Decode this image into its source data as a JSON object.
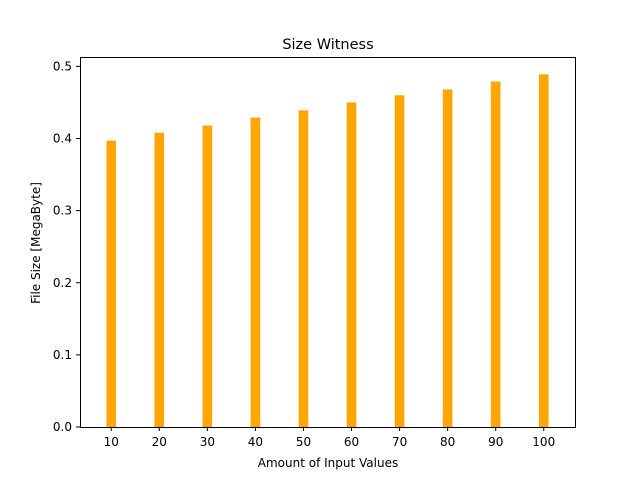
{
  "chart_data": {
    "type": "bar",
    "title": "Size Witness",
    "xlabel": "Amount of Input Values",
    "ylabel": "File Size [MegaByte]",
    "categories": [
      10,
      20,
      30,
      40,
      50,
      60,
      70,
      80,
      90,
      100
    ],
    "values": [
      0.397,
      0.408,
      0.418,
      0.429,
      0.439,
      0.45,
      0.46,
      0.468,
      0.479,
      0.489
    ],
    "xlim": [
      3.5,
      106.5
    ],
    "ylim": [
      0,
      0.513
    ],
    "y_ticks": [
      0.0,
      0.1,
      0.2,
      0.3,
      0.4,
      0.5
    ],
    "y_tick_labels": [
      "0.0",
      "0.1",
      "0.2",
      "0.3",
      "0.4",
      "0.5"
    ],
    "x_tick_labels": [
      "10",
      "20",
      "30",
      "40",
      "50",
      "60",
      "70",
      "80",
      "90",
      "100"
    ],
    "bar_color": "#ffa500",
    "grid": false,
    "legend": "none"
  }
}
